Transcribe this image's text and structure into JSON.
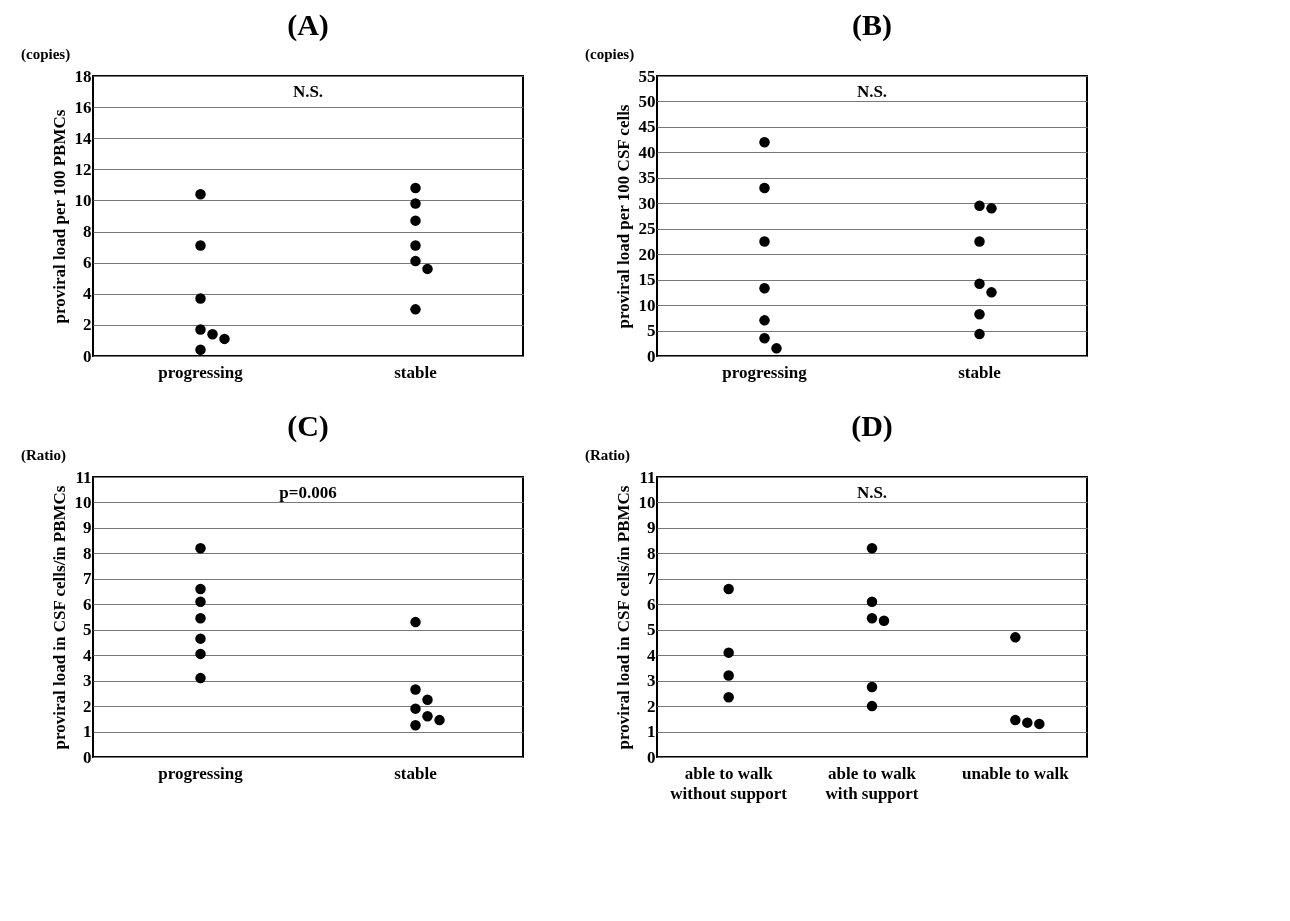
{
  "chart_data": [
    {
      "type": "scatter",
      "title": "(A)",
      "ylabel": "proviral load per 100 PBMCs",
      "categories": [
        "progressing",
        "stable"
      ],
      "ylim": [
        0,
        18
      ],
      "yticks": [
        0,
        2,
        4,
        6,
        8,
        10,
        12,
        14,
        16,
        18
      ],
      "grid": "y",
      "marker": "circle",
      "annotations": [
        "(copies)",
        "N.S."
      ],
      "series": [
        {
          "color": "#000000",
          "x": [
            "progressing",
            "progressing",
            "progressing",
            "progressing",
            "progressing",
            "progressing",
            "progressing",
            "stable",
            "stable",
            "stable",
            "stable",
            "stable",
            "stable",
            "stable"
          ],
          "values": [
            10.4,
            7.1,
            3.7,
            1.7,
            1.4,
            1.1,
            0.4,
            10.8,
            9.8,
            8.7,
            7.1,
            6.1,
            5.6,
            3.0
          ]
        }
      ]
    },
    {
      "type": "scatter",
      "title": "(B)",
      "ylabel": "proviral load per 100 CSF cells",
      "categories": [
        "progressing",
        "stable"
      ],
      "ylim": [
        0,
        55
      ],
      "yticks": [
        0,
        5,
        10,
        15,
        20,
        25,
        30,
        35,
        40,
        45,
        50,
        55
      ],
      "grid": "y",
      "marker": "circle",
      "annotations": [
        "(copies)",
        "N.S."
      ],
      "series": [
        {
          "color": "#000000",
          "x": [
            "progressing",
            "progressing",
            "progressing",
            "progressing",
            "progressing",
            "progressing",
            "progressing",
            "stable",
            "stable",
            "stable",
            "stable",
            "stable",
            "stable",
            "stable"
          ],
          "values": [
            42,
            33,
            22.5,
            13.3,
            7,
            3.5,
            1.5,
            29.5,
            29,
            22.5,
            14.2,
            12.5,
            8.2,
            4.3
          ]
        }
      ]
    },
    {
      "type": "scatter",
      "title": "(C)",
      "ylabel": "proviral load in CSF cells/in PBMCs",
      "categories": [
        "progressing",
        "stable"
      ],
      "ylim": [
        0,
        11
      ],
      "yticks": [
        0,
        1,
        2,
        3,
        4,
        5,
        6,
        7,
        8,
        9,
        10,
        11
      ],
      "grid": "y",
      "marker": "circle",
      "annotations": [
        "(Ratio)",
        "p=0.006"
      ],
      "series": [
        {
          "color": "#000000",
          "x": [
            "progressing",
            "progressing",
            "progressing",
            "progressing",
            "progressing",
            "progressing",
            "progressing",
            "stable",
            "stable",
            "stable",
            "stable",
            "stable",
            "stable",
            "stable"
          ],
          "values": [
            8.2,
            6.6,
            6.1,
            5.45,
            4.65,
            4.05,
            3.1,
            5.3,
            2.65,
            2.25,
            1.9,
            1.6,
            1.45,
            1.25
          ]
        }
      ]
    },
    {
      "type": "scatter",
      "title": "(D)",
      "ylabel": "proviral load in CSF cells/in PBMCs",
      "categories": [
        "able to walk\nwithout support",
        "able to walk\nwith support",
        "unable to walk"
      ],
      "ylim": [
        0,
        11
      ],
      "yticks": [
        0,
        1,
        2,
        3,
        4,
        5,
        6,
        7,
        8,
        9,
        10,
        11
      ],
      "grid": "y",
      "marker": "circle",
      "annotations": [
        "(Ratio)",
        "N.S."
      ],
      "series": [
        {
          "color": "#000000",
          "x": [
            "able to walk\nwithout support",
            "able to walk\nwithout support",
            "able to walk\nwithout support",
            "able to walk\nwithout support",
            "able to walk\nwith support",
            "able to walk\nwith support",
            "able to walk\nwith support",
            "able to walk\nwith support",
            "able to walk\nwith support",
            "able to walk\nwith support",
            "unable to walk",
            "unable to walk",
            "unable to walk",
            "unable to walk"
          ],
          "values": [
            6.6,
            4.1,
            3.2,
            2.35,
            8.2,
            6.1,
            5.45,
            5.35,
            2.75,
            2.0,
            4.7,
            1.45,
            1.35,
            1.3
          ]
        }
      ]
    }
  ]
}
